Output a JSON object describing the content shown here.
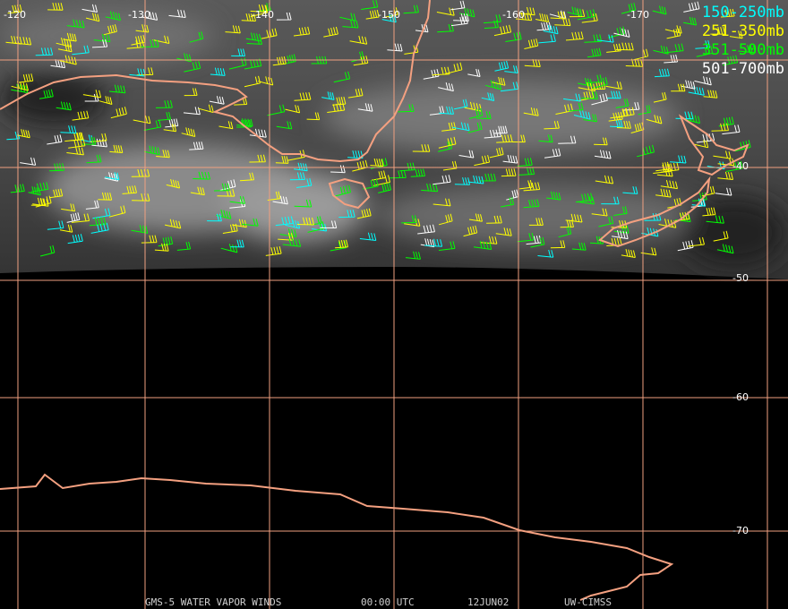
{
  "map": {
    "lon_labels": [
      "-120",
      "-130",
      "-140",
      "-150",
      "-160",
      "-170"
    ],
    "lat_labels": [
      "-40",
      "-50",
      "-60",
      "-70"
    ],
    "legend": [
      {
        "label": "150-250mb",
        "color": "#00ffff"
      },
      {
        "label": "251-350mb",
        "color": "#ffff00"
      },
      {
        "label": "351-500mb",
        "color": "#00ff00"
      },
      {
        "label": "501-700mb",
        "color": "#ffffff"
      }
    ],
    "footer": [
      "GMS-5 WATER VAPOR WINDS",
      "00:00 UTC",
      "12JUN02",
      "UW-CIMSS"
    ]
  }
}
